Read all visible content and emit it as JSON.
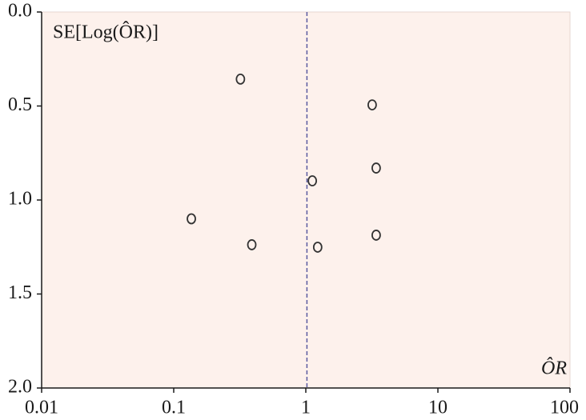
{
  "chart_data": {
    "type": "scatter",
    "ylabel": "SE[Log(ÔR)]",
    "xlabel": "ÔR",
    "x": [
      0.32,
      3.18,
      3.41,
      1.12,
      0.136,
      0.39,
      1.23,
      3.41
    ],
    "values": [
      0.357,
      0.494,
      0.83,
      0.898,
      1.1,
      1.238,
      1.251,
      1.187
    ],
    "xlim": [
      0.01,
      100
    ],
    "ylim": [
      0,
      2
    ],
    "xticks": [
      0.01,
      0.1,
      1,
      10,
      100
    ],
    "yticks": [
      {
        "value": 0,
        "label": "0.0"
      },
      0.5,
      {
        "value": 1,
        "label": "1.0"
      },
      1.5,
      {
        "value": 2,
        "label": "2.0"
      }
    ],
    "xscale": "log",
    "y_inverted": true,
    "reference_x": 1.02,
    "color": "#333333",
    "reference_color": "#5a5aa0",
    "background": "#fdf1ec"
  }
}
